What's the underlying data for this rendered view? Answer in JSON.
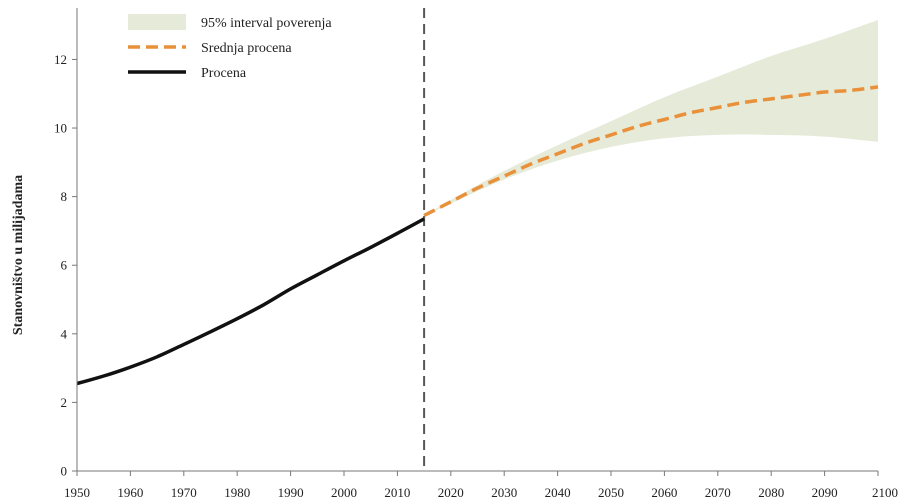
{
  "chart_data": {
    "type": "line",
    "title": "",
    "xlabel": "",
    "ylabel": "Stanovništvo u milijadama",
    "xlim": [
      1950,
      2100
    ],
    "ylim": [
      0,
      13.5
    ],
    "x_ticks": [
      "1950",
      "1960",
      "1970",
      "1980",
      "1990",
      "2000",
      "2010",
      "2020",
      "2030",
      "2040",
      "2050",
      "2060",
      "2070",
      "2080",
      "2090",
      "2100"
    ],
    "y_ticks": [
      "0",
      "2",
      "4",
      "6",
      "8",
      "10",
      "12"
    ],
    "grid": false,
    "legend_position": "top-left",
    "divider_year": 2015,
    "legend": [
      {
        "label": "95% interval poverenja",
        "kind": "band",
        "color": "#e6ead8"
      },
      {
        "label": "Srednja procena",
        "kind": "dashed",
        "color": "#e8913a"
      },
      {
        "label": "Procena",
        "kind": "solid",
        "color": "#111111"
      }
    ],
    "series": [
      {
        "name": "Procena",
        "style": "solid",
        "color": "#111111",
        "x": [
          1950,
          1955,
          1960,
          1965,
          1970,
          1975,
          1980,
          1985,
          1990,
          1995,
          2000,
          2005,
          2010,
          2015
        ],
        "values": [
          2.55,
          2.77,
          3.03,
          3.33,
          3.69,
          4.06,
          4.44,
          4.85,
          5.31,
          5.72,
          6.13,
          6.52,
          6.93,
          7.35
        ]
      },
      {
        "name": "Srednja procena",
        "style": "dashed",
        "color": "#e8913a",
        "x": [
          2015,
          2020,
          2025,
          2030,
          2035,
          2040,
          2045,
          2050,
          2055,
          2060,
          2065,
          2070,
          2075,
          2080,
          2085,
          2090,
          2095,
          2100
        ],
        "values": [
          7.45,
          7.85,
          8.25,
          8.6,
          8.95,
          9.25,
          9.55,
          9.8,
          10.05,
          10.25,
          10.45,
          10.6,
          10.75,
          10.85,
          10.95,
          11.05,
          11.1,
          11.2
        ]
      }
    ],
    "band": {
      "name": "95% interval poverenja",
      "color": "#e6ead8",
      "x": [
        2015,
        2020,
        2030,
        2040,
        2050,
        2060,
        2070,
        2080,
        2090,
        2100
      ],
      "lower": [
        7.45,
        7.8,
        8.5,
        9.05,
        9.45,
        9.7,
        9.8,
        9.8,
        9.75,
        9.6
      ],
      "upper": [
        7.45,
        7.9,
        8.75,
        9.5,
        10.2,
        10.9,
        11.5,
        12.1,
        12.6,
        13.15
      ]
    }
  }
}
